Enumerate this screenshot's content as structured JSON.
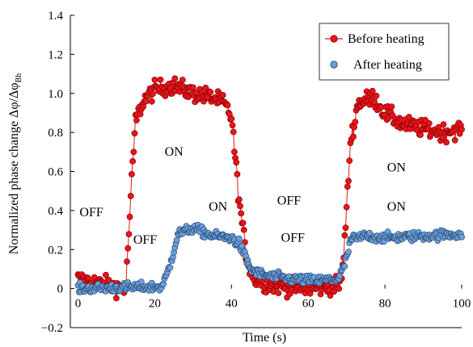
{
  "chart_data": {
    "type": "scatter",
    "title": "",
    "xlabel": "Time (s)",
    "ylabel_main": "Normalized phase change Δφ/Δφ",
    "ylabel_sub": "Bh",
    "xlim": [
      -2,
      100
    ],
    "ylim": [
      -0.2,
      1.4
    ],
    "xticks": [
      0,
      20,
      40,
      60,
      80,
      100
    ],
    "xtick_labels": [
      "0",
      "20",
      "40",
      "60",
      "80",
      "100"
    ],
    "yticks": [
      0,
      0.2,
      0.4,
      0.6,
      0.8,
      1.0,
      1.2,
      1.4
    ],
    "ytick_labels": [
      "0",
      "0.2",
      "0.4",
      "0.6",
      "0.8",
      "1.0",
      "1.2",
      "1.4"
    ],
    "ymin_label": "−0.2",
    "grid": false,
    "legend_position": "top-right",
    "series": [
      {
        "name": "Before heating",
        "color": "#e8141b",
        "edge": "#7a0000",
        "line": true,
        "profile": [
          [
            0,
            0.05
          ],
          [
            12,
            0.0
          ],
          [
            12.5,
            0.02
          ],
          [
            13,
            0.2
          ],
          [
            14,
            0.55
          ],
          [
            15,
            0.86
          ],
          [
            17,
            0.96
          ],
          [
            20,
            1.02
          ],
          [
            25,
            1.04
          ],
          [
            30,
            1.0
          ],
          [
            35,
            0.98
          ],
          [
            38,
            0.95
          ],
          [
            40,
            0.88
          ],
          [
            42,
            0.45
          ],
          [
            44,
            0.15
          ],
          [
            46,
            0.05
          ],
          [
            50,
            0.02
          ],
          [
            60,
            0.0
          ],
          [
            68,
            0.02
          ],
          [
            69,
            0.1
          ],
          [
            70,
            0.4
          ],
          [
            71,
            0.75
          ],
          [
            73,
            0.95
          ],
          [
            77,
            0.98
          ],
          [
            80,
            0.9
          ],
          [
            85,
            0.84
          ],
          [
            90,
            0.82
          ],
          [
            95,
            0.8
          ],
          [
            100,
            0.82
          ]
        ],
        "noise": 0.045
      },
      {
        "name": "After heating",
        "color": "#6b9fd6",
        "edge": "#1d3d6b",
        "line": false,
        "profile": [
          [
            0,
            0.0
          ],
          [
            22,
            0.01
          ],
          [
            24,
            0.12
          ],
          [
            26,
            0.28
          ],
          [
            30,
            0.31
          ],
          [
            35,
            0.27
          ],
          [
            40,
            0.26
          ],
          [
            42,
            0.23
          ],
          [
            45,
            0.1
          ],
          [
            48,
            0.07
          ],
          [
            55,
            0.05
          ],
          [
            62,
            0.04
          ],
          [
            68,
            0.05
          ],
          [
            70,
            0.15
          ],
          [
            71,
            0.25
          ],
          [
            75,
            0.27
          ],
          [
            80,
            0.26
          ],
          [
            90,
            0.27
          ],
          [
            100,
            0.28
          ]
        ],
        "noise": 0.025
      }
    ],
    "annotations": [
      {
        "text": "OFF",
        "x": 3.5,
        "y": 0.37
      },
      {
        "text": "ON",
        "x": 25,
        "y": 0.68
      },
      {
        "text": "OFF",
        "x": 17.5,
        "y": 0.23
      },
      {
        "text": "ON",
        "x": 36.5,
        "y": 0.4
      },
      {
        "text": "OFF",
        "x": 55,
        "y": 0.43
      },
      {
        "text": "OFF",
        "x": 56,
        "y": 0.24
      },
      {
        "text": "ON",
        "x": 83,
        "y": 0.6
      },
      {
        "text": "ON",
        "x": 83,
        "y": 0.4
      }
    ]
  }
}
